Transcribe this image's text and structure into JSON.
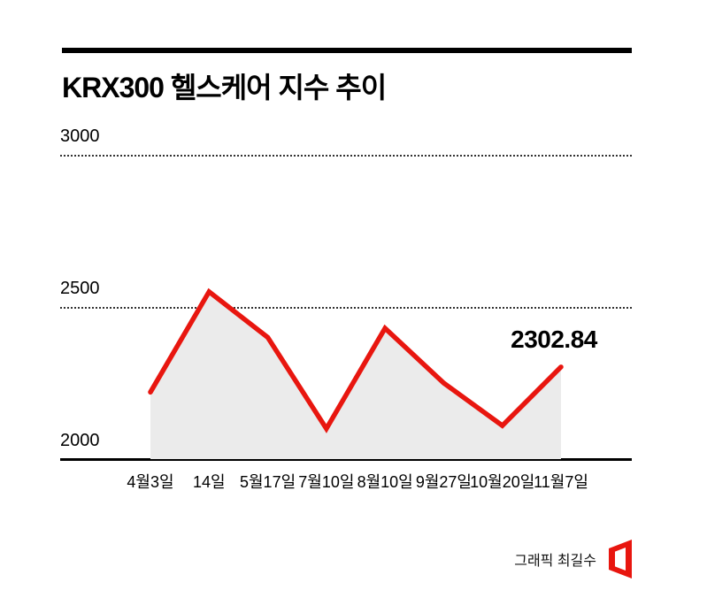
{
  "page": {
    "title": "KRX300 헬스케어 지수 추이"
  },
  "chart_data": {
    "type": "line",
    "title": "KRX300 헬스케어 지수 추이",
    "categories": [
      "4월3일",
      "14일",
      "5월17일",
      "7월10일",
      "8월10일",
      "9월27일",
      "10월20일",
      "11월7일"
    ],
    "series": [
      {
        "name": "KRX300 헬스케어 지수",
        "values": [
          2220,
          2550,
          2400,
          2100,
          2430,
          2250,
          2110,
          2302.84
        ]
      }
    ],
    "ylim": [
      2000,
      3000
    ],
    "yticks": [
      2000,
      2500,
      3000
    ],
    "grid": "horizontal dotted lines at 2500 and 3000; solid black baseline at 2000",
    "legend": "none",
    "last_value_label": "2302.84",
    "line_color": "#e8160f",
    "fill_color": "#ebebeb",
    "axis_color": "#000000"
  },
  "footer": {
    "credit": "그래픽 최길수",
    "logo_color": "#e8160f"
  }
}
